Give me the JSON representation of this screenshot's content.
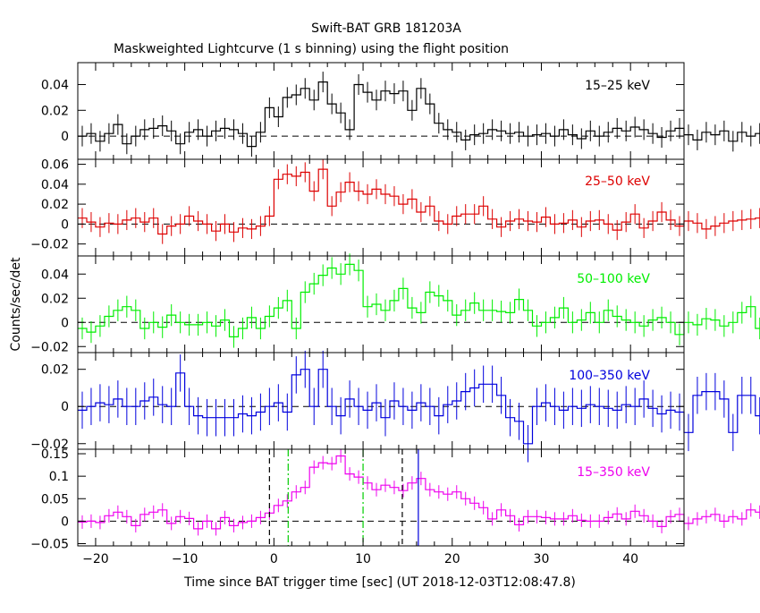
{
  "title_line1": "Swift-BAT GRB 181203A",
  "title_line2": "Maskweighted Lightcurve (1 s binning) using the flight position",
  "xlabel": "Time since BAT trigger time [sec] (UT 2018-12-03T12:08:47.8)",
  "ylabel": "Counts/sec/det",
  "chart_data": [
    {
      "type": "line",
      "name": "15-25 keV",
      "label": "15–25 keV",
      "color": "#000000",
      "xlim": [
        -22,
        46
      ],
      "ylim": [
        -0.018,
        0.057
      ],
      "yticks": [
        0,
        0.02,
        0.04
      ],
      "yticklabels": [
        "0",
        "0.02",
        "0.04"
      ],
      "xticks": [
        -20,
        -10,
        0,
        10,
        20,
        30,
        40
      ],
      "x_start": -21.5,
      "bin": 1,
      "err": 0.008,
      "values": [
        0.0,
        0.002,
        -0.004,
        0.002,
        0.009,
        -0.006,
        0.0,
        0.005,
        0.006,
        0.008,
        0.004,
        -0.006,
        0.003,
        0.005,
        0.0,
        0.004,
        0.006,
        0.005,
        0.002,
        -0.008,
        0.003,
        0.022,
        0.015,
        0.03,
        0.032,
        0.037,
        0.028,
        0.042,
        0.025,
        0.018,
        0.005,
        0.04,
        0.034,
        0.028,
        0.035,
        0.033,
        0.035,
        0.02,
        0.037,
        0.025,
        0.01,
        0.005,
        0.003,
        -0.003,
        0.001,
        0.002,
        0.005,
        0.004,
        0.002,
        0.003,
        0.0,
        0.001,
        0.002,
        0.0,
        0.005,
        0.001,
        -0.002,
        0.004,
        0.0,
        0.003,
        0.006,
        0.004,
        0.007,
        0.005,
        0.002,
        -0.001,
        0.004,
        0.006,
        0.001,
        -0.003,
        0.003,
        0.001,
        0.004,
        -0.004,
        0.003,
        0.0,
        0.002
      ],
      "annotations": []
    },
    {
      "type": "line",
      "name": "25-50 keV",
      "label": "25–50 keV",
      "color": "#dd0000",
      "xlim": [
        -22,
        46
      ],
      "ylim": [
        -0.032,
        0.065
      ],
      "yticks": [
        -0.02,
        0,
        0.02,
        0.04,
        0.06
      ],
      "yticklabels": [
        "−0.02",
        "0",
        "0.02",
        "0.04",
        "0.06"
      ],
      "xticks": [
        -20,
        -10,
        0,
        10,
        20,
        30,
        40
      ],
      "x_start": -21.5,
      "bin": 1,
      "err": 0.01,
      "values": [
        0.006,
        0.002,
        -0.003,
        0.001,
        0.0,
        0.004,
        0.006,
        0.002,
        0.006,
        -0.01,
        -0.002,
        0.0,
        0.008,
        0.003,
        0.0,
        -0.007,
        0.0,
        -0.008,
        -0.004,
        -0.005,
        -0.002,
        0.008,
        0.045,
        0.05,
        0.048,
        0.052,
        0.033,
        0.055,
        0.018,
        0.032,
        0.042,
        0.033,
        0.03,
        0.035,
        0.03,
        0.028,
        0.02,
        0.025,
        0.012,
        0.018,
        0.003,
        0.0,
        0.008,
        0.01,
        0.01,
        0.018,
        0.005,
        -0.003,
        0.003,
        0.005,
        0.003,
        0.002,
        0.007,
        0.0,
        0.001,
        0.004,
        -0.003,
        0.003,
        0.004,
        0.0,
        -0.006,
        0.002,
        0.01,
        -0.004,
        0.003,
        0.012,
        0.004,
        -0.002,
        0.003,
        0.001,
        -0.005,
        -0.002,
        0.001,
        0.003,
        0.004,
        0.005,
        0.006
      ],
      "annotations": []
    },
    {
      "type": "line",
      "name": "50-100 keV",
      "label": "50–100 keV",
      "color": "#00ee00",
      "xlim": [
        -22,
        46
      ],
      "ylim": [
        -0.025,
        0.055
      ],
      "yticks": [
        -0.02,
        0,
        0.02,
        0.04
      ],
      "yticklabels": [
        "−0.02",
        "0",
        "0.02",
        "0.04"
      ],
      "xticks": [
        -20,
        -10,
        0,
        10,
        20,
        30,
        40
      ],
      "x_start": -21.5,
      "bin": 1,
      "err": 0.009,
      "values": [
        -0.005,
        -0.008,
        -0.003,
        0.005,
        0.01,
        0.013,
        0.01,
        -0.005,
        0.0,
        -0.004,
        0.006,
        0.0,
        -0.002,
        -0.002,
        0.0,
        -0.003,
        0.002,
        -0.012,
        -0.005,
        0.004,
        -0.005,
        0.005,
        0.012,
        0.018,
        -0.005,
        0.025,
        0.032,
        0.039,
        0.045,
        0.04,
        0.048,
        0.043,
        0.013,
        0.015,
        0.01,
        0.018,
        0.028,
        0.012,
        0.008,
        0.025,
        0.022,
        0.018,
        0.006,
        0.01,
        0.016,
        0.01,
        0.01,
        0.009,
        0.008,
        0.019,
        0.01,
        -0.003,
        0.0,
        0.004,
        0.012,
        0.0,
        0.002,
        0.008,
        0.0,
        0.01,
        0.005,
        0.002,
        0.0,
        -0.003,
        0.002,
        0.004,
        0.0,
        -0.01,
        0.0,
        -0.002,
        0.003,
        0.002,
        -0.003,
        0.0,
        0.008,
        0.013,
        -0.005
      ],
      "annotations": []
    },
    {
      "type": "line",
      "name": "100-350 keV",
      "label": "100–350 keV",
      "color": "#0000dd",
      "xlim": [
        -22,
        46
      ],
      "ylim": [
        -0.023,
        0.029
      ],
      "yticks": [
        -0.02,
        0,
        0.02
      ],
      "yticklabels": [
        "−0.02",
        "0",
        "0.02"
      ],
      "xticks": [
        -20,
        -10,
        0,
        10,
        20,
        30,
        40
      ],
      "x_start": -21.5,
      "bin": 1,
      "err": 0.01,
      "values": [
        -0.002,
        0.0,
        0.002,
        0.001,
        0.004,
        0.0,
        0.0,
        0.003,
        0.005,
        0.001,
        0.0,
        0.018,
        0.0,
        -0.005,
        -0.006,
        -0.006,
        -0.006,
        -0.006,
        -0.004,
        -0.005,
        -0.003,
        0.0,
        0.002,
        -0.003,
        0.017,
        0.02,
        0.0,
        0.02,
        0.0,
        -0.005,
        0.004,
        0.0,
        -0.002,
        0.002,
        -0.006,
        0.003,
        0.0,
        -0.002,
        0.002,
        0.0,
        -0.005,
        0.001,
        0.003,
        0.008,
        0.01,
        0.012,
        0.012,
        0.006,
        -0.006,
        -0.008,
        -0.02,
        0.0,
        0.002,
        0.0,
        -0.002,
        0.0,
        -0.001,
        0.001,
        0.0,
        -0.001,
        -0.002,
        0.001,
        0.0,
        0.004,
        -0.001,
        -0.004,
        -0.002,
        -0.003,
        -0.014,
        0.006,
        0.008,
        0.008,
        0.004,
        -0.014,
        0.006,
        0.006,
        -0.005
      ],
      "annotations": []
    },
    {
      "type": "line",
      "name": "15-350 keV",
      "label": "15–350 keV",
      "color": "#ee00ee",
      "xlim": [
        -22,
        46
      ],
      "ylim": [
        -0.055,
        0.16
      ],
      "yticks": [
        -0.05,
        0,
        0.05,
        0.1,
        0.15
      ],
      "yticklabels": [
        "−0.05",
        "0",
        "0.05",
        "0.1",
        "0.15"
      ],
      "xticks": [
        -20,
        -10,
        0,
        10,
        20,
        30,
        40
      ],
      "x_start": -21.5,
      "bin": 1,
      "err": 0.015,
      "values": [
        -0.002,
        0.0,
        -0.003,
        0.012,
        0.02,
        0.01,
        -0.01,
        0.015,
        0.02,
        0.025,
        -0.005,
        0.01,
        0.006,
        -0.017,
        0.0,
        -0.017,
        0.008,
        -0.01,
        -0.003,
        0.0,
        0.008,
        0.018,
        0.035,
        0.045,
        0.065,
        0.075,
        0.12,
        0.13,
        0.128,
        0.145,
        0.105,
        0.098,
        0.085,
        0.07,
        0.08,
        0.075,
        0.068,
        0.085,
        0.095,
        0.07,
        0.065,
        0.06,
        0.065,
        0.05,
        0.04,
        0.03,
        0.005,
        0.025,
        0.012,
        -0.008,
        0.01,
        0.01,
        0.008,
        0.005,
        0.005,
        0.012,
        0.002,
        0.0,
        0.0,
        0.008,
        0.016,
        0.005,
        0.022,
        0.012,
        0.0,
        -0.012,
        0.01,
        0.015,
        -0.005,
        0.005,
        0.01,
        0.015,
        0.0,
        0.01,
        0.005,
        0.025,
        0.02
      ],
      "annotations": [
        {
          "kind": "vline",
          "x": -0.5,
          "style": "dash",
          "color": "#000000"
        },
        {
          "kind": "vline",
          "x": 1.6,
          "style": "dashdot",
          "color": "#00cc00"
        },
        {
          "kind": "vline",
          "x": 10.0,
          "style": "dashdot",
          "color": "#00cc00"
        },
        {
          "kind": "vline",
          "x": 14.4,
          "style": "dash",
          "color": "#000000"
        },
        {
          "kind": "vline",
          "x": 16.2,
          "style": "solid",
          "color": "#0000dd"
        }
      ]
    }
  ]
}
